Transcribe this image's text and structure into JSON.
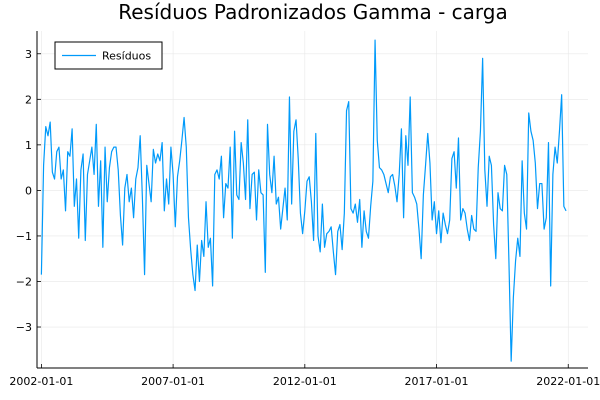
{
  "colors": {
    "series": "#009AFA",
    "grid": "#E8E8E8",
    "axis": "#000000"
  },
  "chart_data": {
    "type": "line",
    "title": "Resíduos Padronizados Gamma - carga",
    "xlabel": "",
    "ylabel": "",
    "x_tick_labels": [
      "2002-01-01",
      "2007-01-01",
      "2012-01-01",
      "2017-01-01",
      "2022-01-01"
    ],
    "y_ticks": [
      -3,
      -2,
      -1,
      0,
      1,
      2,
      3
    ],
    "ylim": [
      -3.9,
      3.5
    ],
    "xlim": [
      "2001-11",
      "2022-10"
    ],
    "grid": true,
    "legend_position": "top-left",
    "x_start": "2002-01",
    "x_frequency": "monthly",
    "series": [
      {
        "name": "Resíduos",
        "values": [
          -1.85,
          0.55,
          1.4,
          1.2,
          1.5,
          0.4,
          0.25,
          0.85,
          0.95,
          0.25,
          0.45,
          -0.45,
          0.85,
          0.75,
          1.35,
          -0.35,
          0.25,
          -1.05,
          0.45,
          0.8,
          -1.1,
          0.35,
          0.65,
          0.95,
          0.35,
          1.45,
          -0.35,
          0.65,
          -1.25,
          0.95,
          -0.25,
          0.5,
          0.85,
          0.95,
          0.95,
          0.45,
          -0.55,
          -1.2,
          0.05,
          0.35,
          -0.25,
          0.05,
          -0.6,
          0.25,
          0.5,
          1.2,
          -0.15,
          -1.85,
          0.55,
          0.15,
          -0.25,
          0.9,
          0.6,
          0.8,
          0.65,
          1.05,
          -0.45,
          0.25,
          -0.3,
          0.95,
          0.35,
          -0.8,
          0.3,
          0.65,
          1.1,
          1.6,
          0.95,
          -0.6,
          -1.3,
          -1.85,
          -2.2,
          -1.2,
          -2.0,
          -1.1,
          -1.45,
          -0.25,
          -1.25,
          -1.05,
          -2.1,
          0.35,
          0.45,
          0.25,
          0.75,
          -0.6,
          0.15,
          0.05,
          0.95,
          -1.05,
          1.3,
          -0.1,
          -0.2,
          1.05,
          0.6,
          -0.2,
          1.55,
          -0.4,
          0.35,
          0.4,
          -0.65,
          0.45,
          -0.05,
          -0.1,
          -1.8,
          1.45,
          0.35,
          -0.05,
          0.75,
          -0.3,
          -0.15,
          -0.85,
          -0.4,
          0.05,
          -0.65,
          2.05,
          -0.3,
          1.3,
          1.55,
          0.7,
          -0.5,
          -0.95,
          -0.45,
          0.2,
          0.3,
          -0.25,
          -1.1,
          1.25,
          -1.0,
          -1.35,
          -0.3,
          -1.25,
          -0.95,
          -0.9,
          -0.8,
          -1.35,
          -1.85,
          -0.9,
          -0.75,
          -1.3,
          -0.5,
          1.75,
          1.95,
          -0.4,
          -0.5,
          -0.3,
          -0.7,
          -0.2,
          -1.25,
          -0.45,
          -0.9,
          -1.05,
          -0.35,
          0.2,
          3.3,
          1.1,
          0.5,
          0.45,
          0.35,
          0.15,
          -0.05,
          0.3,
          0.35,
          0.1,
          -0.25,
          0.35,
          1.35,
          -0.6,
          1.2,
          0.55,
          2.05,
          -0.05,
          -0.15,
          -0.3,
          -0.85,
          -1.5,
          -0.1,
          0.55,
          1.25,
          0.6,
          -0.65,
          -0.25,
          -0.95,
          -0.45,
          -1.15,
          -0.5,
          -0.75,
          -0.95,
          -0.65,
          0.7,
          0.85,
          0.05,
          1.15,
          -0.65,
          -0.4,
          -0.5,
          -0.85,
          -1.1,
          -0.55,
          -0.85,
          -0.9,
          0.5,
          1.3,
          2.9,
          0.45,
          -0.35,
          0.75,
          0.55,
          -0.75,
          -1.5,
          -0.05,
          -0.4,
          -0.45,
          0.55,
          0.35,
          -1.6,
          -3.75,
          -2.35,
          -1.55,
          -1.05,
          -1.45,
          0.65,
          -0.5,
          -0.85,
          1.7,
          1.3,
          1.1,
          0.6,
          -0.4,
          0.15,
          0.15,
          -0.85,
          -0.6,
          1.05,
          -2.1,
          0.35,
          0.95,
          0.6,
          1.3,
          2.1,
          -0.35,
          -0.45
        ]
      }
    ]
  }
}
